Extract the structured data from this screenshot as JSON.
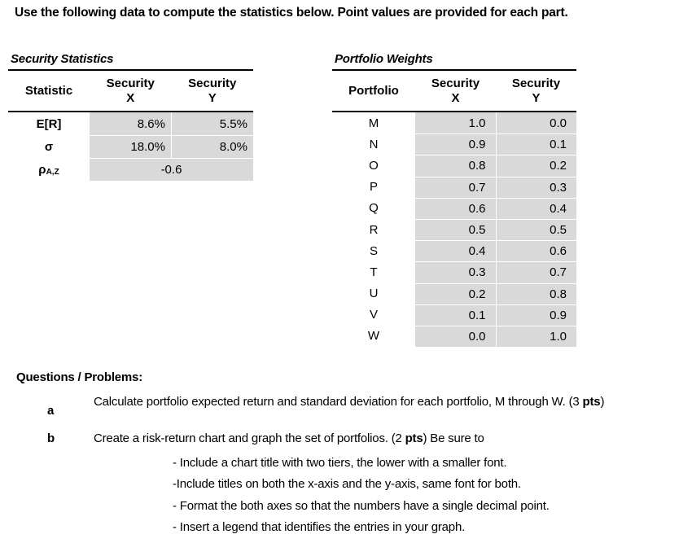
{
  "page": {
    "title": "Use the following data to compute the statistics below. Point values are provided for each part."
  },
  "colors": {
    "cell_fill": "#d9d9d9",
    "text": "#000000",
    "rule": "#000000"
  },
  "security_statistics": {
    "title": "Security Statistics",
    "columns": [
      {
        "line1": "Statistic",
        "line2": ""
      },
      {
        "line1": "Security",
        "line2": "X"
      },
      {
        "line1": "Security",
        "line2": "Y"
      }
    ],
    "rows": [
      {
        "label": "E[R]",
        "x": "8.6%",
        "y": "5.5%"
      },
      {
        "label": "σ",
        "x": "18.0%",
        "y": "8.0%"
      },
      {
        "label": "ρ",
        "label_sub": "A,Z",
        "merged_value": "-0.6"
      }
    ]
  },
  "portfolio_weights": {
    "title": "Portfolio Weights",
    "columns": [
      {
        "line1": "Portfolio",
        "line2": ""
      },
      {
        "line1": "Security",
        "line2": "X"
      },
      {
        "line1": "Security",
        "line2": "Y"
      }
    ],
    "rows": [
      {
        "label": "M",
        "x": "1.0",
        "y": "0.0"
      },
      {
        "label": "N",
        "x": "0.9",
        "y": "0.1"
      },
      {
        "label": "O",
        "x": "0.8",
        "y": "0.2"
      },
      {
        "label": "P",
        "x": "0.7",
        "y": "0.3"
      },
      {
        "label": "Q",
        "x": "0.6",
        "y": "0.4"
      },
      {
        "label": "R",
        "x": "0.5",
        "y": "0.5"
      },
      {
        "label": "S",
        "x": "0.4",
        "y": "0.6"
      },
      {
        "label": "T",
        "x": "0.3",
        "y": "0.7"
      },
      {
        "label": "U",
        "x": "0.2",
        "y": "0.8"
      },
      {
        "label": "V",
        "x": "0.1",
        "y": "0.9"
      },
      {
        "label": "W",
        "x": "0.0",
        "y": "1.0"
      }
    ]
  },
  "questions": {
    "heading": "Questions / Problems:",
    "items": [
      {
        "label": "a",
        "pre": "Calculate portfolio expected return and standard deviation for each portfolio, M through W. (3 ",
        "bold": "pts",
        "post": ")"
      },
      {
        "label": "b",
        "pre": "Create a risk-return chart and graph the set of portfolios. (2 ",
        "bold": "pts",
        "post": ") Be sure to"
      }
    ],
    "bullets": [
      "- Include a chart title with two tiers, the lower with a smaller font.",
      "-Include titles on both the x-axis and the y-axis, same font for both.",
      "- Format the both axes so that the numbers have a single decimal point.",
      "- Insert a legend that identifies the entries in your graph."
    ]
  }
}
